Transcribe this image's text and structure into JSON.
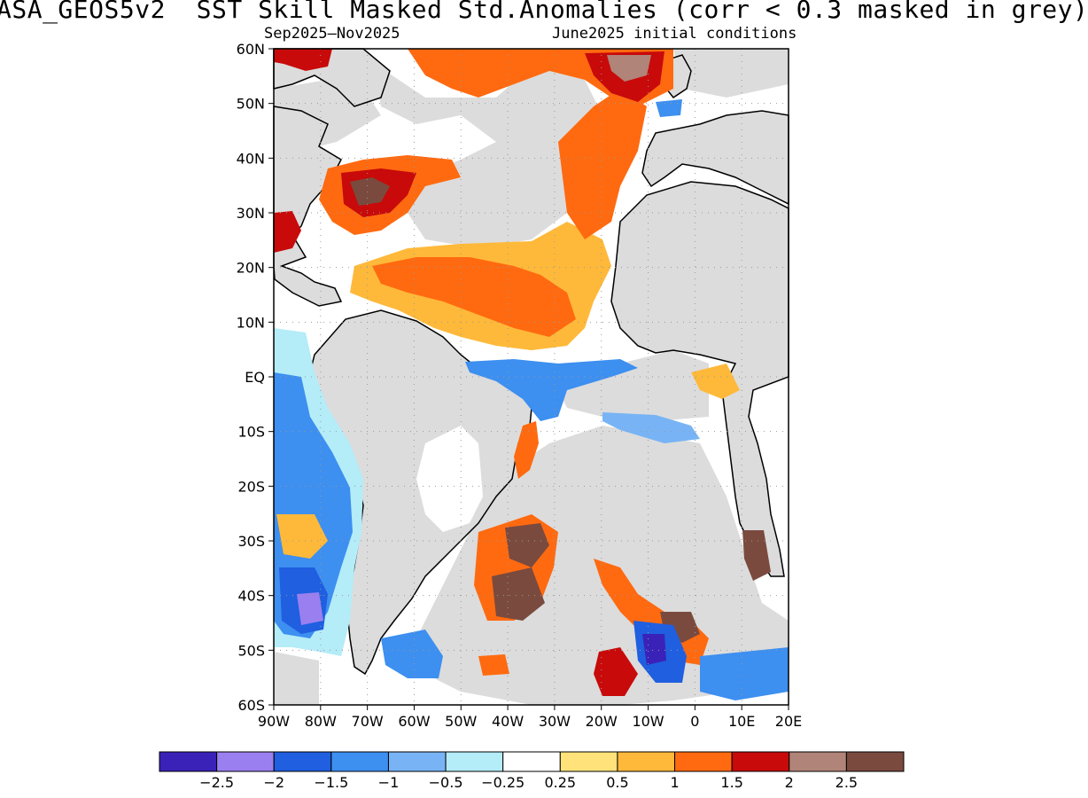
{
  "title": "ASA_GEOS5v2  SST Skill Masked Std.Anomalies (corr < 0.3 masked in grey)",
  "subtitle_left": "Sep2025–Nov2025",
  "subtitle_right": "June2025 initial conditions",
  "map": {
    "lat_labels": [
      "60N",
      "50N",
      "40N",
      "30N",
      "20N",
      "10N",
      "EQ",
      "10S",
      "20S",
      "30S",
      "40S",
      "50S",
      "60S"
    ],
    "lon_labels": [
      "90W",
      "80W",
      "70W",
      "60W",
      "50W",
      "40W",
      "30W",
      "20W",
      "10W",
      "0",
      "10E",
      "20E"
    ],
    "lat_range": [
      -60,
      60
    ],
    "lon_range": [
      -90,
      20
    ],
    "gridlines": true
  },
  "colorbar": {
    "colors": [
      "#3a22b8",
      "#9a7ff0",
      "#1f5fe0",
      "#3d8ff0",
      "#78b4f5",
      "#b4ecf8",
      "#ffffff",
      "#ffe37a",
      "#ffb93a",
      "#ff6a10",
      "#c80a0a",
      "#b08478",
      "#7a4a3e"
    ],
    "labels": [
      "−2.5",
      "−2",
      "−1.5",
      "−1",
      "−0.5",
      "−0.25",
      "0.25",
      "0.5",
      "1",
      "1.5",
      "2",
      "2.5"
    ]
  },
  "colors": {
    "mask_grey": "#dcdcdc",
    "coast": "#000000"
  }
}
